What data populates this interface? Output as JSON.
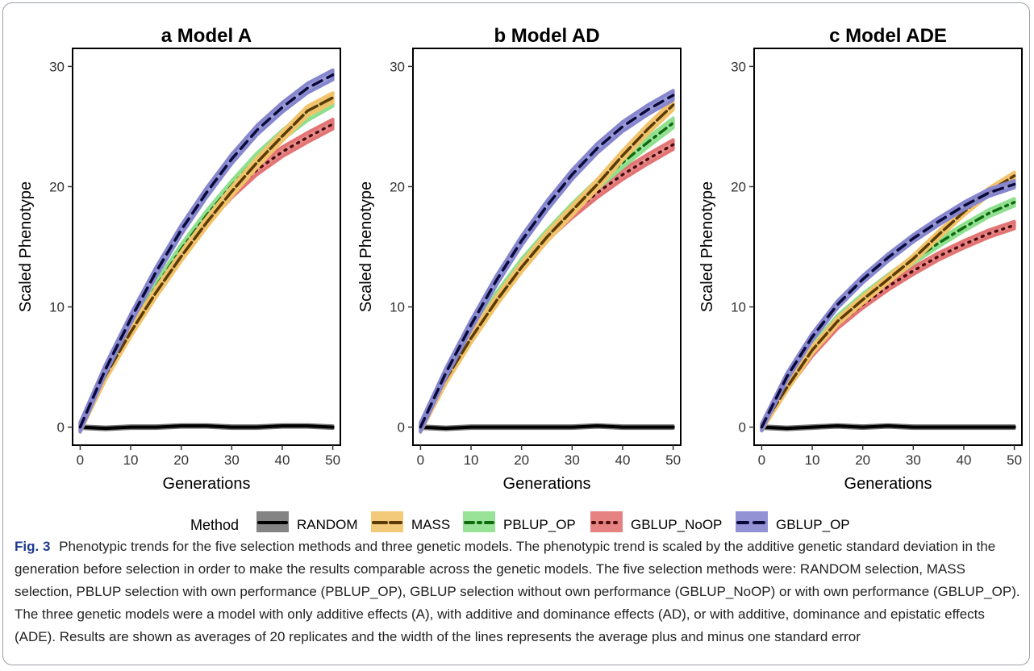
{
  "legend": {
    "title": "Method",
    "items": [
      {
        "name": "RANDOM",
        "color": "#000000",
        "band": "#777777",
        "dash": "solid"
      },
      {
        "name": "MASS",
        "color": "#5a3a05",
        "band": "#f2c36b",
        "dash": "longdash"
      },
      {
        "name": "PBLUP_OP",
        "color": "#106b10",
        "band": "#8ee08e",
        "dash": "dashdot"
      },
      {
        "name": "GBLUP_NoOP",
        "color": "#4a0c0c",
        "band": "#e37474",
        "dash": "dotted"
      },
      {
        "name": "GBLUP_OP",
        "color": "#0a0a3a",
        "band": "#8686cf",
        "dash": "dashed"
      }
    ]
  },
  "caption": {
    "label": "Fig. 3",
    "text": "Phenotypic trends for the five selection methods and three genetic models. The phenotypic trend is scaled by the additive genetic standard deviation in the generation before selection in order to make the results comparable across the genetic models. The five selection methods were: RANDOM selection, MASS selection, PBLUP selection with own performance (PBLUP_OP), GBLUP selection without own performance (GBLUP_NoOP) or with own performance (GBLUP_OP). The three genetic models were a model with only additive effects (A), with additive and dominance effects (AD), or with additive, dominance and epistatic effects (ADE). Results are shown as averages of 20 replicates and the width of the lines represents the average plus and minus one standard error"
  },
  "chart_data": [
    {
      "type": "line",
      "panel": "a",
      "title": "Model A",
      "xlabel": "Generations",
      "ylabel": "Scaled Phenotype",
      "xlim": [
        -1.5,
        51.5
      ],
      "ylim": [
        -1.5,
        31.5
      ],
      "xticks": [
        0,
        10,
        20,
        30,
        40,
        50
      ],
      "yticks": [
        0,
        10,
        20,
        30
      ],
      "grid": false,
      "x": [
        0,
        5,
        10,
        15,
        20,
        25,
        30,
        35,
        40,
        45,
        50
      ],
      "series": [
        {
          "name": "RANDOM",
          "values": [
            0,
            -0.1,
            0.0,
            0.0,
            0.1,
            0.1,
            0.0,
            0.0,
            0.1,
            0.1,
            0.0
          ],
          "se": 0.1
        },
        {
          "name": "MASS",
          "values": [
            0,
            4.3,
            7.9,
            11.2,
            14.2,
            17.0,
            19.6,
            22.0,
            24.2,
            26.3,
            27.4
          ],
          "se": 0.4
        },
        {
          "name": "PBLUP_OP",
          "values": [
            0,
            4.5,
            8.3,
            11.7,
            14.8,
            17.6,
            20.1,
            22.4,
            24.3,
            25.9,
            27.1
          ],
          "se": 0.4
        },
        {
          "name": "GBLUP_NoOP",
          "values": [
            0,
            4.4,
            8.1,
            11.4,
            14.4,
            17.2,
            19.5,
            21.4,
            22.9,
            24.1,
            25.2
          ],
          "se": 0.4
        },
        {
          "name": "GBLUP_OP",
          "values": [
            0,
            4.8,
            9.0,
            12.9,
            16.4,
            19.5,
            22.3,
            24.7,
            26.6,
            28.2,
            29.3
          ],
          "se": 0.4
        }
      ]
    },
    {
      "type": "line",
      "panel": "b",
      "title": "Model AD",
      "xlabel": "Generations",
      "ylabel": "Scaled Phenotype",
      "xlim": [
        -1.5,
        51.5
      ],
      "ylim": [
        -1.5,
        31.5
      ],
      "xticks": [
        0,
        10,
        20,
        30,
        40,
        50
      ],
      "yticks": [
        0,
        10,
        20,
        30
      ],
      "grid": false,
      "x": [
        0,
        5,
        10,
        15,
        20,
        25,
        30,
        35,
        40,
        45,
        50
      ],
      "series": [
        {
          "name": "RANDOM",
          "values": [
            0,
            -0.1,
            0.0,
            0.0,
            0.0,
            0.0,
            0.0,
            0.1,
            0.0,
            0.0,
            0.0
          ],
          "se": 0.1
        },
        {
          "name": "MASS",
          "values": [
            0,
            4.0,
            7.4,
            10.5,
            13.3,
            15.8,
            18.0,
            20.2,
            22.6,
            24.8,
            26.8
          ],
          "se": 0.4
        },
        {
          "name": "PBLUP_OP",
          "values": [
            0,
            4.1,
            7.6,
            10.8,
            13.6,
            16.0,
            18.2,
            20.2,
            22.0,
            23.7,
            25.3
          ],
          "se": 0.4
        },
        {
          "name": "GBLUP_NoOP",
          "values": [
            0,
            4.0,
            7.5,
            10.7,
            13.5,
            15.9,
            17.8,
            19.5,
            21.0,
            22.3,
            23.5
          ],
          "se": 0.4
        },
        {
          "name": "GBLUP_OP",
          "values": [
            0,
            4.5,
            8.5,
            12.2,
            15.5,
            18.4,
            21.0,
            23.2,
            25.0,
            26.4,
            27.6
          ],
          "se": 0.4
        }
      ]
    },
    {
      "type": "line",
      "panel": "c",
      "title": "Model ADE",
      "xlabel": "Generations",
      "ylabel": "Scaled Phenotype",
      "xlim": [
        -1.5,
        51.5
      ],
      "ylim": [
        -1.5,
        31.5
      ],
      "xticks": [
        0,
        10,
        20,
        30,
        40,
        50
      ],
      "yticks": [
        0,
        10,
        20,
        30
      ],
      "grid": false,
      "x": [
        0,
        5,
        10,
        15,
        20,
        25,
        30,
        35,
        40,
        45,
        50
      ],
      "series": [
        {
          "name": "RANDOM",
          "values": [
            0,
            -0.1,
            0.0,
            0.1,
            0.0,
            0.1,
            0.0,
            0.0,
            0.0,
            0.0,
            0.0
          ],
          "se": 0.1
        },
        {
          "name": "MASS",
          "values": [
            0,
            3.3,
            6.4,
            8.8,
            10.6,
            12.3,
            14.0,
            16.0,
            17.9,
            19.6,
            20.9
          ],
          "se": 0.3
        },
        {
          "name": "PBLUP_OP",
          "values": [
            0,
            3.6,
            6.6,
            9.0,
            10.8,
            12.4,
            13.9,
            15.3,
            16.6,
            17.8,
            18.7
          ],
          "se": 0.3
        },
        {
          "name": "GBLUP_NoOP",
          "values": [
            0,
            3.4,
            6.2,
            8.5,
            10.2,
            11.7,
            13.0,
            14.2,
            15.2,
            16.1,
            16.8
          ],
          "se": 0.3
        },
        {
          "name": "GBLUP_OP",
          "values": [
            0,
            4.2,
            7.5,
            10.2,
            12.3,
            14.1,
            15.7,
            17.1,
            18.4,
            19.5,
            20.2
          ],
          "se": 0.3
        }
      ]
    }
  ]
}
